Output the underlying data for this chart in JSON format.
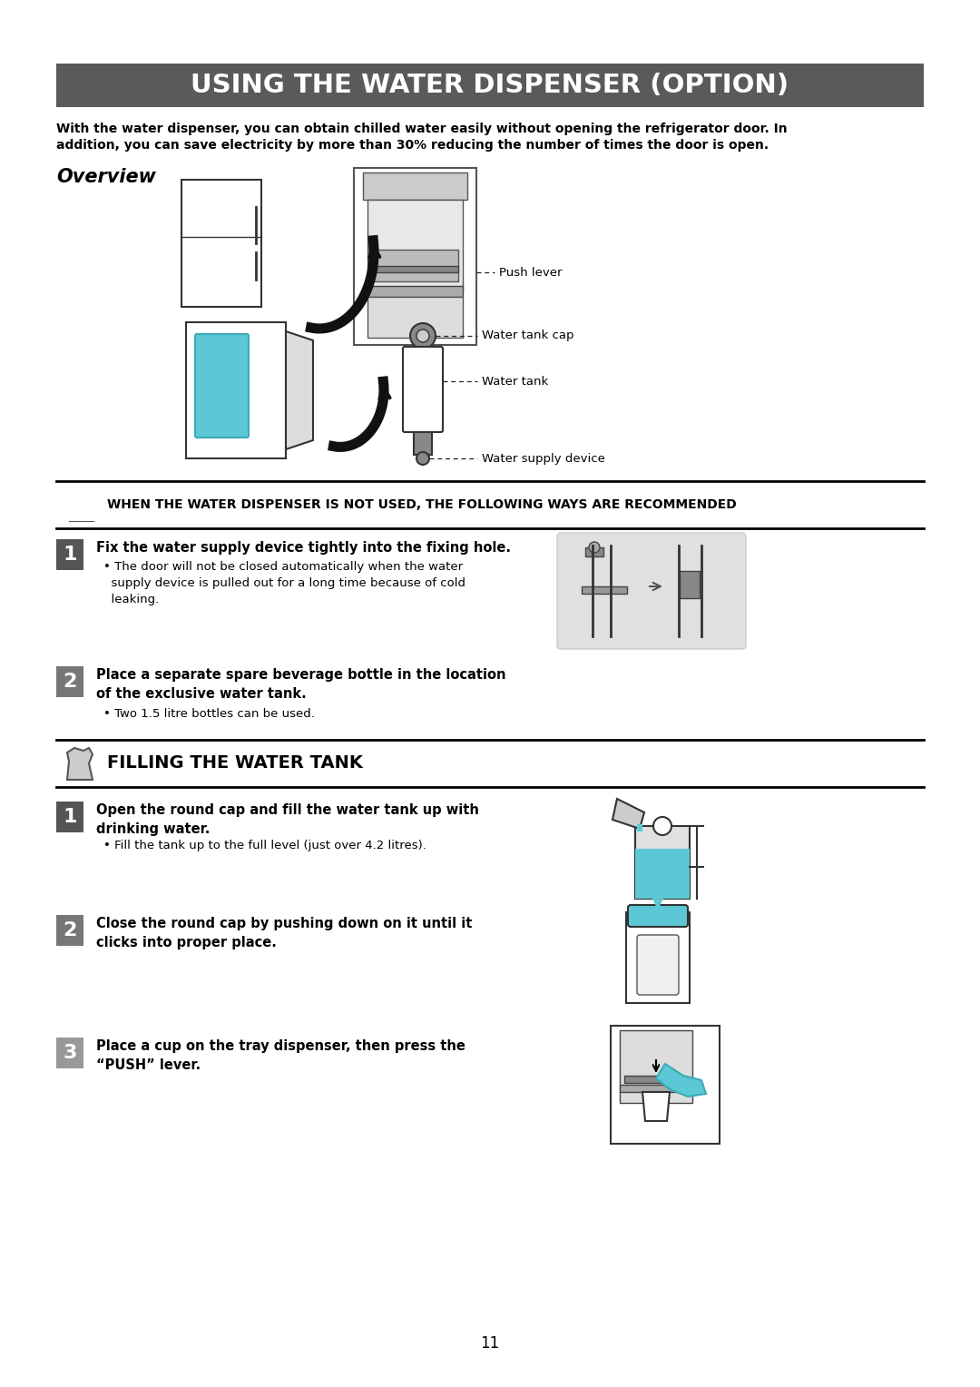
{
  "title": "USING THE WATER DISPENSER (OPTION)",
  "title_bg": "#595959",
  "title_color": "#ffffff",
  "intro_line1": "With the water dispenser, you can obtain chilled water easily without opening the refrigerator door. In",
  "intro_line2": "addition, you can save electricity by more than 30% reducing the number of times the door is open.",
  "overview_label": "Overview",
  "label_push_lever": "Push lever",
  "label_water_tank_cap": "Water tank cap",
  "label_water_tank": "Water tank",
  "label_water_supply": "Water supply device",
  "warning_title": "WHEN THE WATER DISPENSER IS NOT USED, THE FOLLOWING WAYS ARE RECOMMENDED",
  "step1_title": "Fix the water supply device tightly into the fixing hole.",
  "step1_sub": "• The door will not be closed automatically when the water\n  supply device is pulled out for a long time because of cold\n  leaking.",
  "step2_title": "Place a separate spare beverage bottle in the location\nof the exclusive water tank.",
  "step2_sub": "• Two 1.5 litre bottles can be used.",
  "filling_title": "FILLING THE WATER TANK",
  "fill1_title": "Open the round cap and fill the water tank up with\ndrinking water.",
  "fill1_sub": "• Fill the tank up to the full level (just over 4.2 litres).",
  "fill2_title": "Close the round cap by pushing down on it until it\nclicks into proper place.",
  "fill3_title": "Place a cup on the tray dispenser, then press the\n“PUSH” lever.",
  "page_number": "11",
  "bg_color": "#ffffff",
  "text_color": "#000000",
  "title_bg_color": "#5a5a5a"
}
